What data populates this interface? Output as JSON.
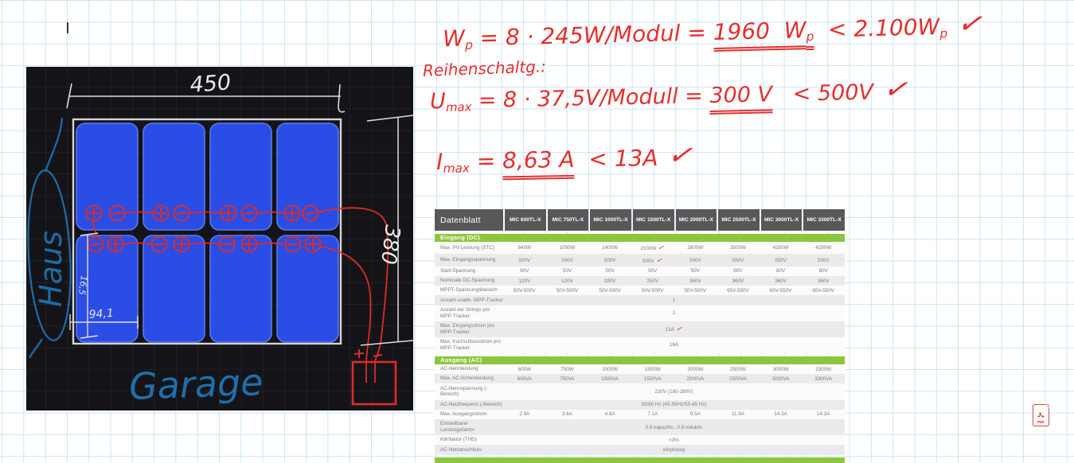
{
  "drawing": {
    "width_label": "450",
    "height_label": "380",
    "row_height_label": "16,5",
    "module_width_label": "94,1",
    "house_label": "Haus",
    "garage_label": "Garage",
    "inverter_plus": "+",
    "inverter_minus": "−",
    "panel_color": "#2a4de6",
    "ink_red": "#dd2c26",
    "ink_blue": "#1d6ca8",
    "ink_white": "#e9e9e9"
  },
  "formulas": {
    "color": "#e3302e",
    "lines": [
      {
        "segments": [
          {
            "t": "W"
          },
          {
            "t": "p",
            "sub": 1
          },
          {
            "t": " = 8 · 245W/Modul = "
          },
          {
            "t": "1960  W",
            "u": 1
          },
          {
            "t": "p",
            "sub": 1,
            "u": 1
          },
          {
            "t": "  < 2.100W"
          },
          {
            "t": "p",
            "sub": 1
          },
          {
            "t": "✓",
            "check": 1
          }
        ]
      },
      {
        "segments": [
          {
            "t": "Reihenschaltg.:"
          }
        ]
      },
      {
        "segments": [
          {
            "t": "U"
          },
          {
            "t": "max",
            "sub": 1
          },
          {
            "t": " = 8 · 37,5V/Modull = "
          },
          {
            "t": "300 V",
            "u": 1
          },
          {
            "t": "   < 500V"
          },
          {
            "t": "✓",
            "check": 1
          }
        ]
      },
      {
        "segments": [
          {
            "t": "I"
          },
          {
            "t": "max",
            "sub": 1
          },
          {
            "t": " = "
          },
          {
            "t": "8,63 A",
            "u": 1
          },
          {
            "t": "  < 13A"
          },
          {
            "t": "✓",
            "check": 1
          }
        ]
      }
    ]
  },
  "datasheet": {
    "title": "Datenblatt",
    "models": [
      "MIC 600TL-X",
      "MIC 750TL-X",
      "MIC 1000TL-X",
      "MIC 1500TL-X",
      "MIC 2000TL-X",
      "MIC 2500TL-X",
      "MIC 3000TL-X",
      "MIC 3300TL-X"
    ],
    "sections": [
      {
        "header": "Eingang (DC)",
        "rows": [
          {
            "label": "Max. PV-Leistung (STC)",
            "values": [
              "840W",
              "1050W",
              "1400W",
              "2100W",
              "2800W",
              "3500W",
              "4200W",
              "4290W"
            ],
            "check_col": 3
          },
          {
            "label": "Max. Eingangsspannung",
            "values": [
              "500V",
              "500V",
              "500V",
              "500V",
              "500V",
              "550V",
              "550V",
              "550V"
            ],
            "check_col": 3
          },
          {
            "label": "Start-Spannung",
            "values": [
              "60V",
              "50V",
              "50V",
              "50V",
              "50V",
              "80V",
              "80V",
              "80V"
            ]
          },
          {
            "label": "Nominale DC-Spannung",
            "values": [
              "120V",
              "120V",
              "180V",
              "250V",
              "360V",
              "360V",
              "360V",
              "360V"
            ]
          },
          {
            "label": "MPPT-Spannungsbereich",
            "values": [
              "50V-500V",
              "50V-500V",
              "50V-500V",
              "50V-500V",
              "50V-500V",
              "65V-550V",
              "65V-550V",
              "65V-550V"
            ]
          },
          {
            "label": "Anzahl unabh. MPP-Tracker",
            "span": "1"
          },
          {
            "label": "Anzahl der Strings pro MPP-Tracker",
            "span": "1"
          },
          {
            "label": "Max. Eingangsstrom pro MPP-Tracker",
            "span": "13A",
            "check": true
          },
          {
            "label": "Max. Kurzschlussstrom pro MPP-Tracker",
            "span": "16A"
          }
        ]
      },
      {
        "header": "Ausgang (AC)",
        "rows": [
          {
            "label": "AC-Nennleistung",
            "values": [
              "600W",
              "750W",
              "1000W",
              "1500W",
              "2000W",
              "2500W",
              "3000W",
              "3300W"
            ]
          },
          {
            "label": "Max. AC-Scheinleistung",
            "values": [
              "600VA",
              "750VA",
              "1000VA",
              "1500VA",
              "2000VA",
              "2500VA",
              "3000VA",
              "3300VA"
            ]
          },
          {
            "label": "AC-Nennspannung (-Bereich)",
            "span": "230V (180-280V)"
          },
          {
            "label": "AC-Netzfrequenz (-Bereich)",
            "span": "50/60 Hz (45-55Hz/55-65 Hz)"
          },
          {
            "label": "Max. Ausgangsstrom",
            "values": [
              "2.9A",
              "3.6A",
              "4.8A",
              "7.1A",
              "9.5A",
              "11.9A",
              "14.3A",
              "14.3A"
            ]
          },
          {
            "label": "Einstellbarer Leistungsfaktor",
            "span": "0.8 kapazitiv...0.8 induktiv"
          },
          {
            "label": "Klirrfaktor (THD)",
            "span": "<3%"
          },
          {
            "label": "AC-Netzanschluss",
            "span": "einphasig"
          }
        ]
      }
    ],
    "colors": {
      "header_bg": "#58585a",
      "section_bg": "#8cc63e",
      "row_alt": "#ebebed",
      "text": "#7b7c7f",
      "check": "#cf3a2e"
    }
  },
  "pdf_icon": {
    "label": "PDF"
  }
}
